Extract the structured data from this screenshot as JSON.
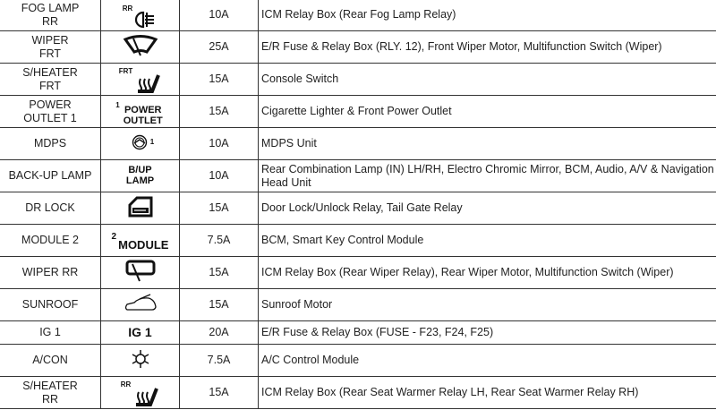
{
  "rows": [
    {
      "name": "FOG LAMP RR",
      "symbol": "rear-fog-lamp-icon",
      "symbol_label": "RR",
      "rating": "10A",
      "circuit": "ICM Relay Box (Rear Fog Lamp Relay)"
    },
    {
      "name": "WIPER FRT",
      "symbol": "front-wiper-icon",
      "rating": "25A",
      "circuit": "E/R Fuse & Relay Box (RLY. 12), Front Wiper Motor, Multifunction Switch (Wiper)"
    },
    {
      "name": "S/HEATER FRT",
      "symbol": "seat-heater-icon",
      "symbol_label": "FRT",
      "rating": "15A",
      "circuit": "Console Switch"
    },
    {
      "name": "POWER OUTLET 1",
      "symbol": "text",
      "symbol_label": "POWER OUTLET",
      "symbol_sup": "1",
      "rating": "15A",
      "circuit": "Cigarette Lighter & Front Power Outlet"
    },
    {
      "name": "MDPS",
      "symbol": "steering-wheel-icon",
      "symbol_sup": "1",
      "rating": "10A",
      "circuit": "MDPS Unit"
    },
    {
      "name": "BACK-UP LAMP",
      "symbol": "text",
      "symbol_label": "B/UP LAMP",
      "rating": "10A",
      "circuit": "Rear Combination Lamp (IN) LH/RH, Electro Chromic Mirror, BCM, Audio, A/V & Navigation Head Unit"
    },
    {
      "name": "DR LOCK",
      "symbol": "door-lock-icon",
      "rating": "15A",
      "circuit": "Door Lock/Unlock Relay, Tail Gate Relay"
    },
    {
      "name": "MODULE 2",
      "symbol": "text",
      "symbol_label": "MODULE",
      "symbol_sup": "2",
      "rating": "7.5A",
      "circuit": "BCM, Smart Key Control Module"
    },
    {
      "name": "WIPER RR",
      "symbol": "rear-wiper-icon",
      "rating": "15A",
      "circuit": "ICM Relay Box (Rear Wiper Relay), Rear Wiper Motor, Multifunction Switch (Wiper)"
    },
    {
      "name": "SUNROOF",
      "symbol": "sunroof-car-icon",
      "rating": "15A",
      "circuit": "Sunroof Motor"
    },
    {
      "name": "IG 1",
      "symbol": "text",
      "symbol_label": "IG 1",
      "rating": "20A",
      "circuit": "E/R Fuse & Relay Box (FUSE - F23, F24, F25)"
    },
    {
      "name": "A/CON",
      "symbol": "snowflake-icon",
      "rating": "7.5A",
      "circuit": "A/C Control Module"
    },
    {
      "name": "S/HEATER RR",
      "symbol": "seat-heater-icon",
      "symbol_label": "RR",
      "rating": "15A",
      "circuit": "ICM Relay Box (Rear Seat Warmer Relay LH, Rear Seat Warmer Relay RH)"
    }
  ]
}
